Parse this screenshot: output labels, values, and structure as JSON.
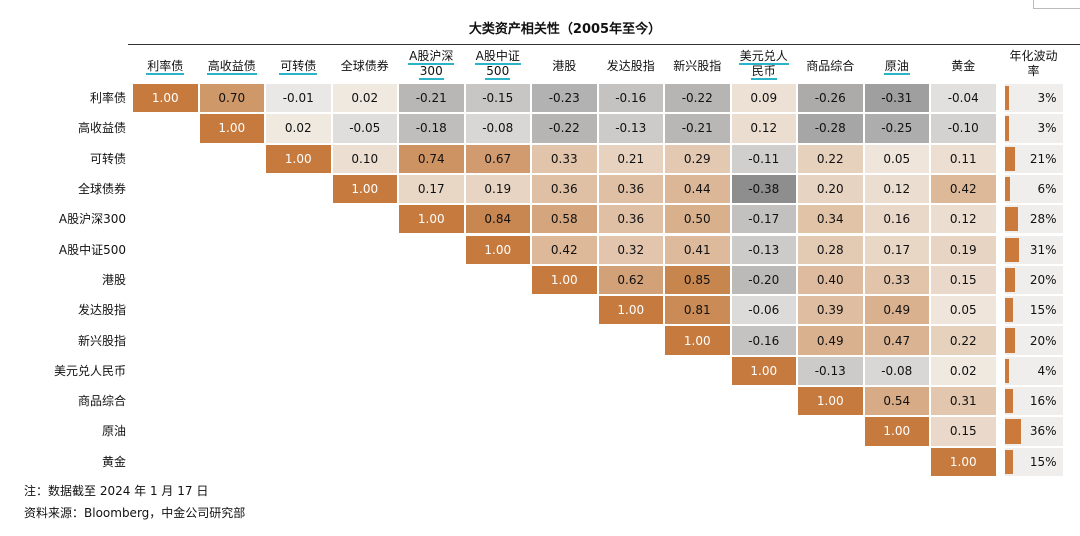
{
  "chart_data": {
    "type": "heatmap",
    "title": "大类资产相关性（2005年至今）",
    "column_labels": [
      {
        "line1": "利率债",
        "line2": ""
      },
      {
        "line1": "高收益债",
        "line2": ""
      },
      {
        "line1": "可转债",
        "line2": ""
      },
      {
        "line1": "全球债券",
        "line2": ""
      },
      {
        "line1": "A股沪深",
        "line2": "300"
      },
      {
        "line1": "A股中证",
        "line2": "500"
      },
      {
        "line1": "港股",
        "line2": ""
      },
      {
        "line1": "发达股指",
        "line2": ""
      },
      {
        "line1": "新兴股指",
        "line2": ""
      },
      {
        "line1": "美元兑人",
        "line2": "民币"
      },
      {
        "line1": "商品综合",
        "line2": ""
      },
      {
        "line1": "原油",
        "line2": ""
      },
      {
        "line1": "黄金",
        "line2": ""
      }
    ],
    "underlined_columns": [
      0,
      1,
      2,
      4,
      5,
      9,
      11
    ],
    "row_labels": [
      "利率债",
      "高收益债",
      "可转债",
      "全球债券",
      "A股沪深300",
      "A股中证500",
      "港股",
      "发达股指",
      "新兴股指",
      "美元兑人民币",
      "商品综合",
      "原油",
      "黄金"
    ],
    "correlations": [
      [
        "1.00",
        "0.70",
        "-0.01",
        "0.02",
        "-0.21",
        "-0.15",
        "-0.23",
        "-0.16",
        "-0.22",
        "0.09",
        "-0.26",
        "-0.31",
        "-0.04"
      ],
      [
        "1.00",
        "0.02",
        "-0.05",
        "-0.18",
        "-0.08",
        "-0.22",
        "-0.13",
        "-0.21",
        "0.12",
        "-0.28",
        "-0.25",
        "-0.10"
      ],
      [
        "1.00",
        "0.10",
        "0.74",
        "0.67",
        "0.33",
        "0.21",
        "0.29",
        "-0.11",
        "0.22",
        "0.05",
        "0.11"
      ],
      [
        "1.00",
        "0.17",
        "0.19",
        "0.36",
        "0.36",
        "0.44",
        "-0.38",
        "0.20",
        "0.12",
        "0.42"
      ],
      [
        "1.00",
        "0.84",
        "0.58",
        "0.36",
        "0.50",
        "-0.17",
        "0.34",
        "0.16",
        "0.12"
      ],
      [
        "1.00",
        "0.42",
        "0.32",
        "0.41",
        "-0.13",
        "0.28",
        "0.17",
        "0.19"
      ],
      [
        "1.00",
        "0.62",
        "0.85",
        "-0.20",
        "0.40",
        "0.33",
        "0.15"
      ],
      [
        "1.00",
        "0.81",
        "-0.06",
        "0.39",
        "0.49",
        "0.05"
      ],
      [
        "1.00",
        "-0.16",
        "0.49",
        "0.47",
        "0.22"
      ],
      [
        "1.00",
        "-0.13",
        "-0.08",
        "0.02"
      ],
      [
        "1.00",
        "0.54",
        "0.31"
      ],
      [
        "1.00",
        "0.15"
      ],
      [
        "1.00"
      ]
    ],
    "volatility_header": {
      "line1": "年化波动",
      "line2": "率"
    },
    "volatility_labels": [
      "3%",
      "3%",
      "21%",
      "6%",
      "28%",
      "31%",
      "20%",
      "15%",
      "20%",
      "4%",
      "16%",
      "36%",
      "15%"
    ],
    "volatility_values": [
      3,
      3,
      21,
      6,
      28,
      31,
      20,
      15,
      20,
      4,
      16,
      36,
      15
    ],
    "colors": {
      "diagonal": "#c67a3e",
      "positive": "#c8864f",
      "negative": "#8e8e8e",
      "volatility_bar": "#cc7a3c",
      "header_underline": "#2bb3c8"
    }
  },
  "notes": {
    "note": "注：数据截至 2024 年 1 月 17 日",
    "source": "资料来源：Bloomberg，中金公司研究部"
  }
}
